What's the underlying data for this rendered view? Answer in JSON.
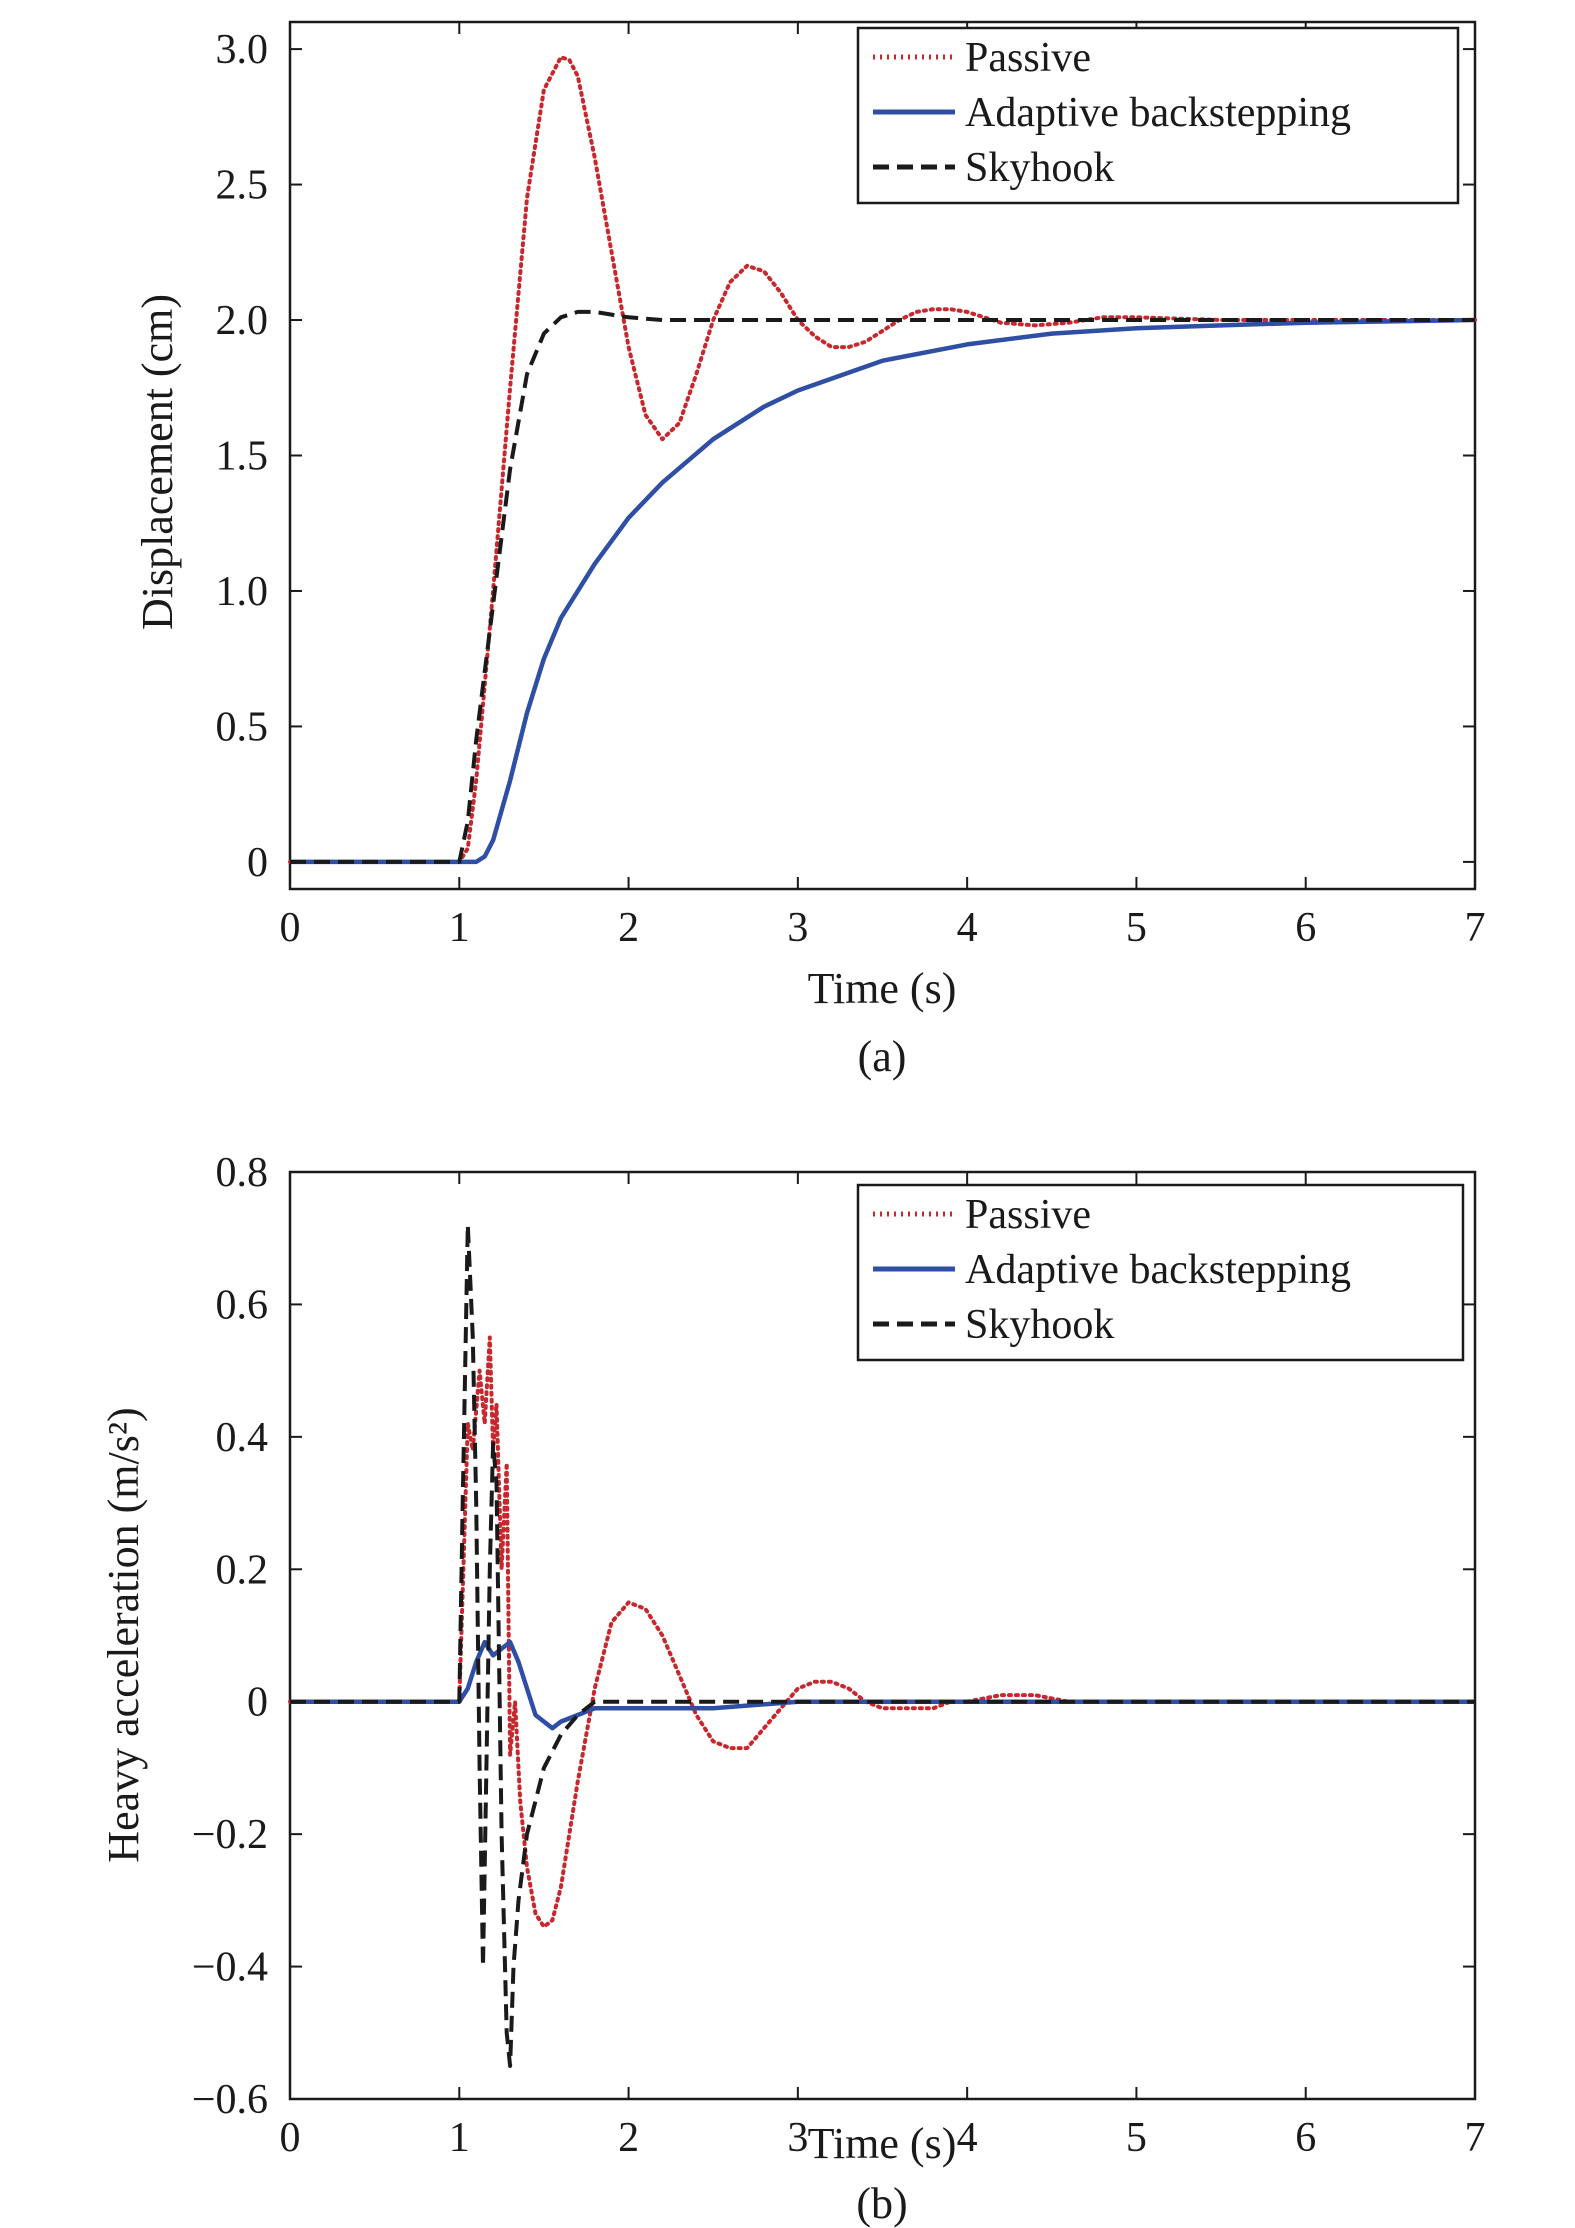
{
  "colors": {
    "passive": "#c8282d",
    "adaptive": "#2f4fa5",
    "skyhook": "#1a1a1a",
    "axis": "#1a1a1a"
  },
  "chart_data": [
    {
      "type": "line",
      "caption": "(a)",
      "xlabel": "Time (s)",
      "ylabel": "Displacement (cm)",
      "xlim": [
        0,
        7
      ],
      "ylim": [
        -0.1,
        3.1
      ],
      "xticks": [
        0,
        1,
        2,
        3,
        4,
        5,
        6,
        7
      ],
      "xtick_labels": [
        "0",
        "1",
        "2",
        "3",
        "4",
        "5",
        "6",
        "7"
      ],
      "yticks": [
        0,
        0.5,
        1.0,
        1.5,
        2.0,
        2.5,
        3.0
      ],
      "ytick_labels": [
        "0",
        "0.5",
        "1.0",
        "1.5",
        "2.0",
        "2.5",
        "3.0"
      ],
      "legend_position": "top-right",
      "grid": false,
      "series": [
        {
          "name": "Passive",
          "style": "dotted",
          "color": "#c8282d",
          "x": [
            0,
            1.0,
            1.05,
            1.1,
            1.2,
            1.3,
            1.4,
            1.5,
            1.6,
            1.65,
            1.7,
            1.8,
            1.9,
            2.0,
            2.1,
            2.2,
            2.3,
            2.4,
            2.5,
            2.6,
            2.7,
            2.8,
            2.9,
            3.0,
            3.1,
            3.2,
            3.3,
            3.4,
            3.5,
            3.6,
            3.7,
            3.8,
            3.9,
            4.0,
            4.1,
            4.2,
            4.4,
            4.6,
            4.8,
            5.0,
            5.5,
            6.0,
            7.0
          ],
          "y": [
            0,
            0,
            0.05,
            0.3,
            1.0,
            1.75,
            2.45,
            2.85,
            2.97,
            2.96,
            2.9,
            2.6,
            2.25,
            1.9,
            1.65,
            1.56,
            1.62,
            1.8,
            2.0,
            2.14,
            2.2,
            2.18,
            2.1,
            2.0,
            1.94,
            1.9,
            1.9,
            1.92,
            1.96,
            2.0,
            2.03,
            2.04,
            2.04,
            2.03,
            2.01,
            1.99,
            1.98,
            1.99,
            2.01,
            2.01,
            2.0,
            2.0,
            2.0
          ]
        },
        {
          "name": "Adaptive backstepping",
          "style": "solid",
          "color": "#2f4fa5",
          "x": [
            0,
            1.0,
            1.1,
            1.15,
            1.2,
            1.3,
            1.4,
            1.5,
            1.6,
            1.8,
            2.0,
            2.2,
            2.5,
            2.8,
            3.0,
            3.5,
            4.0,
            4.5,
            5.0,
            5.5,
            6.0,
            6.5,
            7.0
          ],
          "y": [
            0,
            0,
            0,
            0.02,
            0.08,
            0.3,
            0.55,
            0.75,
            0.9,
            1.1,
            1.27,
            1.4,
            1.56,
            1.68,
            1.74,
            1.85,
            1.91,
            1.95,
            1.97,
            1.98,
            1.99,
            1.995,
            2.0
          ]
        },
        {
          "name": "Skyhook",
          "style": "dashed",
          "color": "#1a1a1a",
          "x": [
            0,
            1.0,
            1.05,
            1.1,
            1.2,
            1.3,
            1.4,
            1.5,
            1.6,
            1.7,
            1.8,
            1.9,
            2.0,
            2.2,
            2.5,
            3.0,
            4.0,
            7.0
          ],
          "y": [
            0,
            0,
            0.15,
            0.45,
            0.95,
            1.45,
            1.8,
            1.95,
            2.01,
            2.03,
            2.03,
            2.02,
            2.01,
            2.0,
            2.0,
            2.0,
            2.0,
            2.0
          ]
        }
      ]
    },
    {
      "type": "line",
      "caption": "(b)",
      "xlabel": "Time (s)",
      "ylabel": "Heavy acceleration (m/s²)",
      "xlim": [
        0,
        7
      ],
      "ylim": [
        -0.6,
        0.8
      ],
      "xticks": [
        0,
        1,
        2,
        3,
        4,
        5,
        6,
        7
      ],
      "xtick_labels": [
        "0",
        "1",
        "2",
        "3",
        "4",
        "5",
        "6",
        "7"
      ],
      "yticks": [
        -0.6,
        -0.4,
        -0.2,
        0,
        0.2,
        0.4,
        0.6,
        0.8
      ],
      "ytick_labels": [
        "−0.6",
        "−0.4",
        "−0.2",
        "0",
        "0.2",
        "0.4",
        "0.6",
        "0.8"
      ],
      "legend_position": "top-right",
      "grid": false,
      "series": [
        {
          "name": "Passive",
          "style": "dotted",
          "color": "#c8282d",
          "x": [
            0,
            1.0,
            1.05,
            1.08,
            1.12,
            1.15,
            1.18,
            1.2,
            1.22,
            1.25,
            1.28,
            1.3,
            1.33,
            1.36,
            1.4,
            1.45,
            1.5,
            1.55,
            1.6,
            1.7,
            1.8,
            1.9,
            2.0,
            2.1,
            2.2,
            2.3,
            2.4,
            2.5,
            2.6,
            2.7,
            2.8,
            2.9,
            3.0,
            3.1,
            3.2,
            3.3,
            3.4,
            3.5,
            3.6,
            3.7,
            3.8,
            3.9,
            4.0,
            4.2,
            4.4,
            4.6,
            4.8,
            5.0,
            5.5,
            6.0,
            7.0
          ],
          "y": [
            0,
            0,
            0.42,
            0.38,
            0.5,
            0.42,
            0.55,
            0.38,
            0.45,
            0.2,
            0.36,
            -0.08,
            0.0,
            -0.15,
            -0.25,
            -0.32,
            -0.34,
            -0.33,
            -0.28,
            -0.12,
            0.02,
            0.12,
            0.15,
            0.14,
            0.1,
            0.04,
            -0.02,
            -0.06,
            -0.07,
            -0.07,
            -0.04,
            -0.01,
            0.02,
            0.03,
            0.03,
            0.02,
            0.0,
            -0.01,
            -0.01,
            -0.01,
            -0.01,
            0.0,
            0.0,
            0.01,
            0.01,
            0.0,
            0.0,
            0.0,
            0.0,
            0.0,
            0.0
          ]
        },
        {
          "name": "Adaptive backstepping",
          "style": "solid",
          "color": "#2f4fa5",
          "x": [
            0,
            1.0,
            1.05,
            1.1,
            1.15,
            1.2,
            1.25,
            1.3,
            1.35,
            1.4,
            1.45,
            1.5,
            1.55,
            1.6,
            1.7,
            1.8,
            2.0,
            2.5,
            3.0,
            4.0,
            7.0
          ],
          "y": [
            0,
            0,
            0.02,
            0.06,
            0.09,
            0.07,
            0.08,
            0.09,
            0.06,
            0.02,
            -0.02,
            -0.03,
            -0.04,
            -0.03,
            -0.02,
            -0.01,
            -0.01,
            -0.01,
            0.0,
            0.0,
            0.0
          ]
        },
        {
          "name": "Skyhook",
          "style": "dashed",
          "color": "#1a1a1a",
          "x": [
            0,
            1.0,
            1.02,
            1.05,
            1.08,
            1.1,
            1.12,
            1.14,
            1.16,
            1.18,
            1.2,
            1.22,
            1.25,
            1.28,
            1.3,
            1.32,
            1.35,
            1.4,
            1.45,
            1.5,
            1.6,
            1.7,
            1.8,
            1.9,
            2.0,
            2.5,
            3.0,
            7.0
          ],
          "y": [
            0,
            0,
            0.3,
            0.72,
            0.55,
            0.3,
            -0.1,
            -0.4,
            -0.1,
            0.2,
            0.39,
            0.33,
            -0.2,
            -0.5,
            -0.55,
            -0.4,
            -0.3,
            -0.2,
            -0.15,
            -0.1,
            -0.05,
            -0.02,
            0.0,
            0.0,
            0.0,
            0.0,
            0.0,
            0.0
          ]
        }
      ]
    }
  ]
}
